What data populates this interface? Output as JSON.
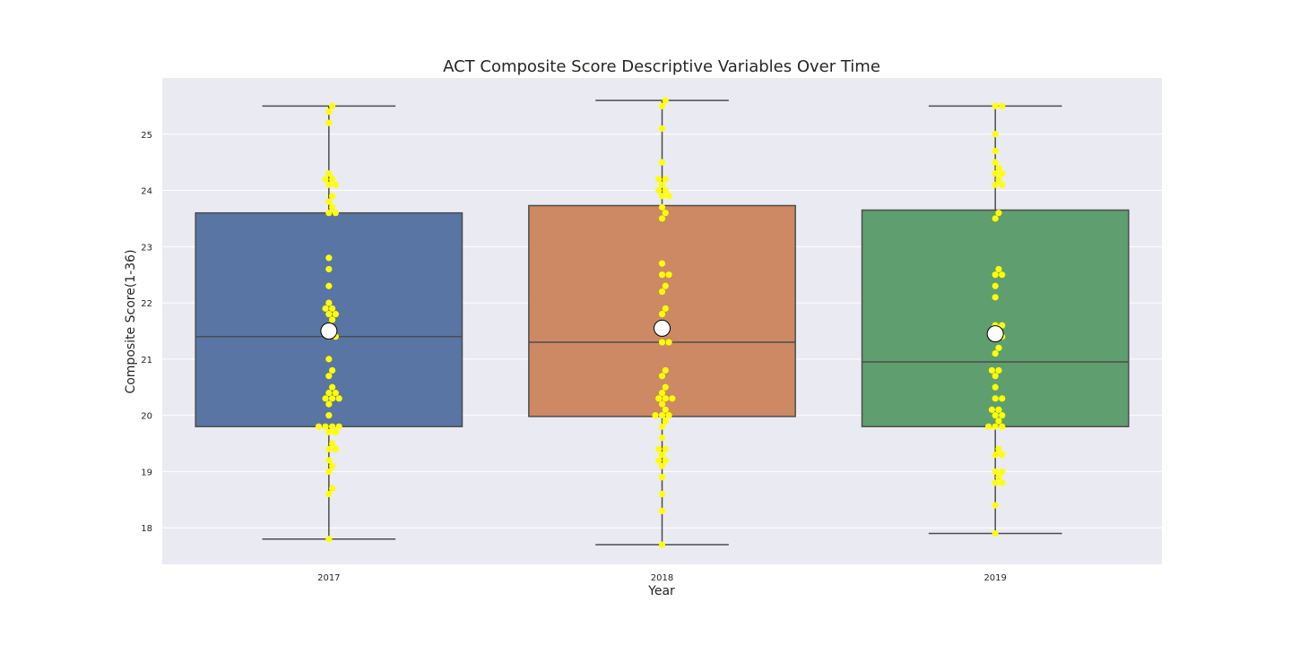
{
  "chart_data": {
    "type": "box",
    "title": "ACT Composite Score Descriptive Variables Over Time",
    "xlabel": "Year",
    "ylabel": "Composite Score(1-36)",
    "categories": [
      "2017",
      "2018",
      "2019"
    ],
    "ylim": [
      17.35,
      26.0
    ],
    "yticks": [
      18,
      19,
      20,
      21,
      22,
      23,
      24,
      25
    ],
    "grid": true,
    "colors": {
      "background": "#eaeaf2",
      "grid": "#ffffff",
      "boxes": [
        "#5875a4",
        "#cc8963",
        "#5f9e6e"
      ],
      "box_edge": "#4d4d4d",
      "points": "#ffff00",
      "mean_marker": "#ffffff"
    },
    "boxes": [
      {
        "category": "2017",
        "min": 17.8,
        "q1": 19.8,
        "median": 21.4,
        "q3": 23.6,
        "max": 25.5,
        "mean": 21.5
      },
      {
        "category": "2018",
        "min": 17.7,
        "q1": 19.98,
        "median": 21.3,
        "q3": 23.73,
        "max": 25.6,
        "mean": 21.55
      },
      {
        "category": "2019",
        "min": 17.9,
        "q1": 19.8,
        "median": 20.95,
        "q3": 23.65,
        "max": 25.5,
        "mean": 21.45
      }
    ],
    "points": [
      [
        17.8,
        18.6,
        18.7,
        19.0,
        19.1,
        19.2,
        19.4,
        19.4,
        19.5,
        19.7,
        19.7,
        19.8,
        19.8,
        19.8,
        19.8,
        20.0,
        20.2,
        20.3,
        20.3,
        20.3,
        20.4,
        20.4,
        20.5,
        20.7,
        20.8,
        21.0,
        21.4,
        21.4,
        21.5,
        21.5,
        21.6,
        21.7,
        21.8,
        21.8,
        21.9,
        21.9,
        22.0,
        22.3,
        22.6,
        22.8,
        23.6,
        23.6,
        23.7,
        23.8,
        23.9,
        24.1,
        24.1,
        24.2,
        24.2,
        24.3,
        25.2,
        25.4,
        25.5
      ],
      [
        17.7,
        18.3,
        18.6,
        18.9,
        19.1,
        19.2,
        19.2,
        19.3,
        19.4,
        19.4,
        19.6,
        19.8,
        19.9,
        20.0,
        20.0,
        20.0,
        20.1,
        20.2,
        20.3,
        20.3,
        20.3,
        20.4,
        20.5,
        20.7,
        20.8,
        21.3,
        21.3,
        21.5,
        21.6,
        21.8,
        21.9,
        22.2,
        22.3,
        22.5,
        22.5,
        22.7,
        23.5,
        23.6,
        23.7,
        23.9,
        23.9,
        24.0,
        24.0,
        24.1,
        24.2,
        24.2,
        24.5,
        25.1,
        25.5,
        25.6
      ],
      [
        17.9,
        18.4,
        18.8,
        18.8,
        18.9,
        19.0,
        19.0,
        19.3,
        19.3,
        19.4,
        19.8,
        19.8,
        19.8,
        19.9,
        20.0,
        20.0,
        20.1,
        20.1,
        20.3,
        20.3,
        20.5,
        20.7,
        20.8,
        20.8,
        21.1,
        21.2,
        21.4,
        21.4,
        21.5,
        21.6,
        21.6,
        22.1,
        22.3,
        22.5,
        22.5,
        22.6,
        23.5,
        23.6,
        24.1,
        24.1,
        24.2,
        24.3,
        24.3,
        24.4,
        24.5,
        24.7,
        25.0,
        25.5,
        25.5
      ]
    ]
  }
}
